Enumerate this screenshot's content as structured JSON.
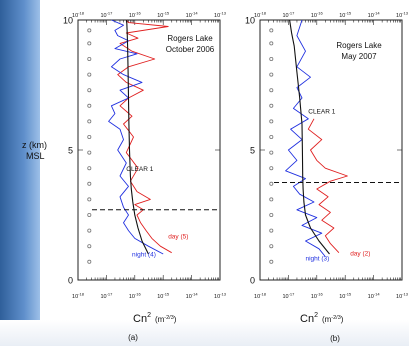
{
  "colors": {
    "day": "#e02020",
    "night": "#2030e0",
    "model": "#111111",
    "dots": "#777777",
    "background_accent": "#3f72b0"
  },
  "z_axis_label_line1": "z (km)",
  "z_axis_label_line2": "MSL",
  "chart_data": [
    {
      "type": "line",
      "panel_label": "(a)",
      "title": "Rogers Lake\nOctober 2006",
      "title_line1": "Rogers Lake",
      "title_line2": "October 2006",
      "xlabel": "Cn2 (m-2/3)",
      "xlabel_main": "Cn",
      "xlabel_sup": "2",
      "xlabel_unit": "(m",
      "xlabel_unit_sup": "-2/3",
      "xlabel_unit_close": ")",
      "x_scale": "log",
      "x_ticks": [
        "10^-18",
        "10^-17",
        "10^-16",
        "10^-15",
        "10^-14",
        "10^-13"
      ],
      "xlim": [
        1e-18,
        1e-13
      ],
      "ylabel": "z (km) MSL",
      "y_ticks": [
        0,
        5,
        10
      ],
      "ylim": [
        0,
        10
      ],
      "annotations": [
        {
          "text": "CLEAR 1",
          "x": 5e-17,
          "z": 4.2
        },
        {
          "text": "day (5)",
          "x": 1.5e-15,
          "z": 1.6
        },
        {
          "text": "night (4)",
          "x": 8e-17,
          "z": 0.9
        }
      ],
      "dashed_level_z": 2.7,
      "series": [
        {
          "name": "day (5)",
          "x": [
            2e-15,
            8e-16,
            4e-16,
            2.5e-16,
            1.6e-16,
            1.2e-16,
            2e-16,
            1e-16,
            3.5e-16,
            1.2e-16,
            7e-17,
            1.3e-16,
            5e-17,
            9e-17,
            4e-17,
            8e-17,
            3e-17,
            6e-17,
            2e-16,
            5e-17,
            2.5e-17,
            6e-17,
            5e-16,
            8e-17,
            3e-17,
            1.3e-16,
            5e-17,
            1.5e-15,
            6e-17,
            5e-17
          ],
          "z": [
            1.05,
            1.3,
            1.6,
            1.9,
            2.2,
            2.5,
            2.7,
            2.9,
            3.1,
            3.4,
            3.8,
            4.3,
            4.9,
            5.5,
            6.0,
            6.3,
            6.7,
            7.0,
            7.3,
            7.6,
            7.9,
            8.2,
            8.5,
            8.8,
            9.1,
            9.3,
            9.5,
            9.75,
            9.9,
            10.0
          ]
        },
        {
          "name": "night (4)",
          "x": [
            1e-15,
            3e-16,
            1e-16,
            6e-17,
            4e-17,
            6e-17,
            4e-17,
            3e-17,
            6e-17,
            3e-17,
            5e-17,
            2.5e-17,
            4e-17,
            3e-17,
            1.2e-17,
            2e-17,
            1.5e-17,
            6e-17,
            3e-17,
            1.8e-16,
            4e-17,
            1.5e-17,
            3e-17,
            1.2e-16,
            2e-17,
            6e-17,
            2.5e-17,
            2e-17,
            4e-17,
            1.5e-17
          ],
          "z": [
            1.0,
            1.3,
            1.6,
            1.9,
            2.2,
            2.5,
            2.8,
            3.2,
            3.6,
            4.0,
            4.5,
            5.0,
            5.4,
            5.8,
            6.1,
            6.4,
            6.7,
            7.0,
            7.3,
            7.6,
            7.9,
            8.2,
            8.5,
            8.7,
            8.9,
            9.2,
            9.4,
            9.6,
            9.8,
            10.0
          ]
        },
        {
          "name": "CLEAR 1",
          "x": [
            3e-16,
            1.8e-16,
            1.3e-16,
            1e-16,
            8.5e-17,
            7.5e-17,
            7e-17,
            6.5e-17,
            6.2e-17,
            6e-17,
            5.8e-17,
            5.6e-17,
            5.4e-17,
            5.2e-17
          ],
          "z": [
            1.0,
            1.5,
            2.0,
            2.5,
            3.0,
            3.5,
            4.0,
            5.0,
            6.0,
            7.0,
            8.0,
            9.0,
            9.5,
            10.0
          ]
        },
        {
          "name": "",
          "marker": "circle",
          "x": [
            2.5e-18,
            2.5e-18,
            2.5e-18,
            2.5e-18,
            2.5e-18,
            2.5e-18,
            2.5e-18,
            2.5e-18,
            2.5e-18,
            2.5e-18,
            2.5e-18,
            2.5e-18,
            2.5e-18,
            2.5e-18,
            2.5e-18,
            2.5e-18
          ],
          "z": [
            0.7,
            1.3,
            1.9,
            2.5,
            3.1,
            3.7,
            4.3,
            4.9,
            5.5,
            6.1,
            6.7,
            7.3,
            7.9,
            8.5,
            9.1,
            9.6
          ]
        }
      ]
    },
    {
      "type": "line",
      "panel_label": "(b)",
      "title": "Rogers Lake\nMay 2007",
      "title_line1": "Rogers Lake",
      "title_line2": "May 2007",
      "xlabel": "Cn2 (m-2/3)",
      "xlabel_main": "Cn",
      "xlabel_sup": "2",
      "xlabel_unit": "(m",
      "xlabel_unit_sup": "-2/3",
      "xlabel_unit_close": ")",
      "x_scale": "log",
      "x_ticks": [
        "10^-18",
        "10^-17",
        "10^-16",
        "10^-15",
        "10^-14",
        "10^-13"
      ],
      "xlim": [
        1e-18,
        1e-13
      ],
      "ylabel": "z (km) MSL",
      "y_ticks": [
        0,
        5,
        10
      ],
      "ylim": [
        0,
        10
      ],
      "annotations": [
        {
          "text": "CLEAR 1",
          "x": 5e-17,
          "z": 6.4
        },
        {
          "text": "day (2)",
          "x": 1.5e-15,
          "z": 0.95
        },
        {
          "text": "night (3)",
          "x": 4e-17,
          "z": 0.75
        }
      ],
      "dashed_level_z": 3.75,
      "series": [
        {
          "name": "day (2)",
          "x": [
            6e-16,
            3e-16,
            2e-16,
            4e-16,
            1.5e-16,
            3e-16,
            1.2e-16,
            2.5e-16,
            1e-16,
            3e-16,
            1.2e-15,
            2e-16,
            1e-16,
            6e-17,
            1.5e-16,
            5e-17,
            8e-17
          ],
          "z": [
            1.05,
            1.4,
            1.7,
            2.0,
            2.3,
            2.6,
            2.9,
            3.2,
            3.5,
            3.8,
            4.0,
            4.3,
            4.6,
            5.0,
            5.4,
            5.8,
            6.2
          ]
        },
        {
          "name": "night (3)",
          "x": [
            2e-16,
            1.2e-16,
            4e-17,
            1.5e-16,
            3e-17,
            1e-16,
            2e-17,
            8e-17,
            2.5e-17,
            1.5e-17,
            4e-17,
            8e-18,
            2e-17,
            1e-17,
            3e-17,
            1.2e-17,
            5e-17,
            1.5e-17,
            3e-17,
            2e-17,
            6e-17,
            2e-17,
            4e-17,
            2e-17,
            3e-17
          ],
          "z": [
            0.9,
            1.2,
            1.5,
            1.8,
            2.1,
            2.4,
            2.7,
            3.0,
            3.3,
            3.6,
            3.9,
            4.2,
            4.6,
            5.0,
            5.4,
            5.8,
            6.2,
            6.6,
            7.0,
            7.4,
            7.8,
            8.2,
            8.8,
            9.4,
            10.0
          ]
        },
        {
          "name": "CLEAR 1",
          "x": [
            2.8e-16,
            1.2e-16,
            6e-17,
            4e-17,
            3.5e-17,
            3.3e-17,
            3.2e-17,
            3.1e-17,
            3e-17,
            2.5e-17,
            2e-17,
            1.6e-17,
            1.3e-17,
            1.1e-17
          ],
          "z": [
            1.0,
            1.5,
            2.0,
            2.5,
            3.0,
            3.5,
            4.0,
            5.0,
            6.0,
            7.0,
            8.0,
            9.0,
            9.5,
            10.0
          ]
        },
        {
          "name": "",
          "marker": "circle",
          "x": [
            2.5e-18,
            2.5e-18,
            2.5e-18,
            2.5e-18,
            2.5e-18,
            2.5e-18,
            2.5e-18,
            2.5e-18,
            2.5e-18,
            2.5e-18,
            2.5e-18,
            2.5e-18,
            2.5e-18,
            2.5e-18,
            2.5e-18,
            2.5e-18
          ],
          "z": [
            0.7,
            1.3,
            1.9,
            2.5,
            3.1,
            3.7,
            4.3,
            4.9,
            5.5,
            6.1,
            6.7,
            7.3,
            7.9,
            8.5,
            9.1,
            9.6
          ]
        }
      ]
    }
  ]
}
